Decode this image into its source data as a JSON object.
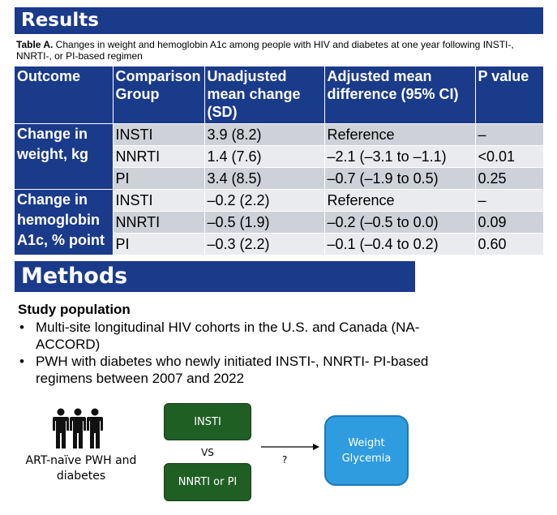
{
  "results": {
    "heading": "Results",
    "caption_label": "Table A.",
    "caption_text": " Changes in weight and hemoglobin A1c among people with HIV and diabetes at one year following INSTI-, NNRTI-, or PI-based regimen",
    "columns": [
      "Outcome",
      "Comparison Group",
      "Unadjusted mean change (SD)",
      "Adjusted mean difference (95% CI)",
      "P value"
    ],
    "groups": [
      {
        "outcome": "Change in weight, kg",
        "rows": [
          {
            "group": "INSTI",
            "unadjusted": "3.9 (8.2)",
            "adjusted": "Reference",
            "p": "–"
          },
          {
            "group": "NNRTI",
            "unadjusted": "1.4 (7.6)",
            "adjusted": "–2.1 (–3.1 to –1.1)",
            "p": "<0.01"
          },
          {
            "group": "PI",
            "unadjusted": "3.4 (8.5)",
            "adjusted": "–0.7 (–1.9 to 0.5)",
            "p": "0.25"
          }
        ]
      },
      {
        "outcome": "Change in hemoglobin A1c, % point",
        "rows": [
          {
            "group": "INSTI",
            "unadjusted": "–0.2 (2.2)",
            "adjusted": "Reference",
            "p": "–"
          },
          {
            "group": "NNRTI",
            "unadjusted": "–0.5 (1.9)",
            "adjusted": "–0.2 (–0.5 to 0.0)",
            "p": "0.09"
          },
          {
            "group": "PI",
            "unadjusted": "–0.3 (2.2)",
            "adjusted": "–0.1 (–0.4 to 0.2)",
            "p": "0.60"
          }
        ]
      }
    ]
  },
  "methods": {
    "heading": "Methods",
    "study_heading": "Study population",
    "bullets": [
      "Multi-site longitudinal HIV cohorts in the U.S. and Canada (NA-ACCORD)",
      "PWH with diabetes who newly initiated INSTI-, NNRTI- PI-based regimens between 2007 and 2022"
    ],
    "bullet_glyph": "•"
  },
  "diagram": {
    "population_label": "ART-naïve PWH and diabetes",
    "box_insti": "INSTI",
    "vs": "VS",
    "box_nnrti": "NNRTI or PI",
    "arrow_label": "?",
    "outcome_line1": "Weight",
    "outcome_line2": "Glycemia",
    "icon": "people-group-icon"
  },
  "colors": {
    "banner": "#1a3a8a",
    "row_shade": "#cfd1d8",
    "row_light": "#eaebee",
    "green_box": "#1f5f24",
    "blue_box": "#2f9ce0"
  }
}
